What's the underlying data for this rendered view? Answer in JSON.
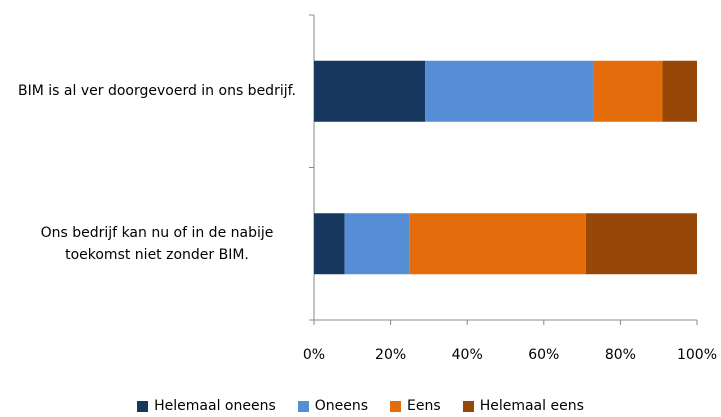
{
  "chart_data": {
    "type": "stacked-bar-horizontal",
    "categories": [
      "BIM is al ver doorgevoerd in ons bedrijf.",
      "Ons bedrijf kan nu of in de nabije toekomst niet zonder BIM."
    ],
    "series": [
      {
        "name": "Helemaal oneens",
        "color": "#17375e",
        "values": [
          29,
          8
        ]
      },
      {
        "name": "Oneens",
        "color": "#558ed5",
        "values": [
          44,
          17
        ]
      },
      {
        "name": "Eens",
        "color": "#e46c0a",
        "values": [
          18,
          46
        ]
      },
      {
        "name": "Helemaal eens",
        "color": "#974806",
        "values": [
          9,
          29
        ]
      }
    ],
    "xlim": [
      0,
      100
    ],
    "xticks": [
      {
        "value": 0,
        "label": "0%"
      },
      {
        "value": 20,
        "label": "20%"
      },
      {
        "value": 40,
        "label": "40%"
      },
      {
        "value": 60,
        "label": "60%"
      },
      {
        "value": 80,
        "label": "80%"
      },
      {
        "value": 100,
        "label": "100%"
      }
    ],
    "grid": false,
    "legend": "bottom"
  }
}
